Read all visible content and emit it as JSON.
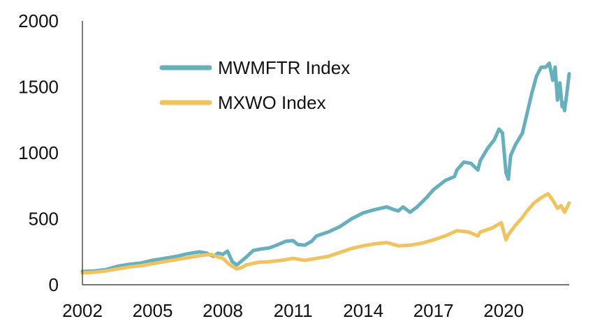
{
  "chart_data": {
    "type": "line",
    "title": "",
    "xlabel": "",
    "ylabel": "",
    "xlim": [
      2002,
      2022.8
    ],
    "ylim": [
      0,
      2000
    ],
    "grid": false,
    "legend_position": "top-left",
    "x_ticks": [
      {
        "value": 2002,
        "label": "2002"
      },
      {
        "value": 2005,
        "label": "2005"
      },
      {
        "value": 2008,
        "label": "2008"
      },
      {
        "value": 2011,
        "label": "2011"
      },
      {
        "value": 2014,
        "label": "2014"
      },
      {
        "value": 2017,
        "label": "2017"
      },
      {
        "value": 2020,
        "label": "2020"
      }
    ],
    "y_ticks": [
      {
        "value": 0,
        "label": "0"
      },
      {
        "value": 500,
        "label": "500"
      },
      {
        "value": 1000,
        "label": "1000"
      },
      {
        "value": 1500,
        "label": "1500"
      },
      {
        "value": 2000,
        "label": "2000"
      }
    ],
    "series": [
      {
        "name": "MWMFTR Index",
        "color": "#66b0bd",
        "points": [
          [
            2002.0,
            100
          ],
          [
            2002.5,
            105
          ],
          [
            2003.0,
            115
          ],
          [
            2003.5,
            140
          ],
          [
            2004.0,
            155
          ],
          [
            2004.5,
            165
          ],
          [
            2005.0,
            185
          ],
          [
            2005.5,
            200
          ],
          [
            2006.0,
            215
          ],
          [
            2006.5,
            235
          ],
          [
            2007.0,
            250
          ],
          [
            2007.3,
            240
          ],
          [
            2007.6,
            215
          ],
          [
            2007.8,
            240
          ],
          [
            2008.0,
            230
          ],
          [
            2008.2,
            255
          ],
          [
            2008.4,
            175
          ],
          [
            2008.6,
            150
          ],
          [
            2008.8,
            180
          ],
          [
            2009.0,
            210
          ],
          [
            2009.3,
            260
          ],
          [
            2009.6,
            270
          ],
          [
            2010.0,
            280
          ],
          [
            2010.3,
            300
          ],
          [
            2010.7,
            330
          ],
          [
            2011.0,
            335
          ],
          [
            2011.2,
            305
          ],
          [
            2011.5,
            300
          ],
          [
            2011.8,
            330
          ],
          [
            2012.0,
            370
          ],
          [
            2012.5,
            400
          ],
          [
            2013.0,
            440
          ],
          [
            2013.5,
            500
          ],
          [
            2014.0,
            545
          ],
          [
            2014.5,
            570
          ],
          [
            2015.0,
            590
          ],
          [
            2015.3,
            570
          ],
          [
            2015.5,
            560
          ],
          [
            2015.7,
            590
          ],
          [
            2016.0,
            550
          ],
          [
            2016.3,
            590
          ],
          [
            2016.7,
            660
          ],
          [
            2017.0,
            720
          ],
          [
            2017.5,
            790
          ],
          [
            2017.9,
            820
          ],
          [
            2018.0,
            870
          ],
          [
            2018.3,
            930
          ],
          [
            2018.6,
            920
          ],
          [
            2018.9,
            870
          ],
          [
            2019.0,
            940
          ],
          [
            2019.3,
            1030
          ],
          [
            2019.6,
            1100
          ],
          [
            2019.8,
            1180
          ],
          [
            2019.95,
            1150
          ],
          [
            2020.1,
            850
          ],
          [
            2020.2,
            800
          ],
          [
            2020.3,
            980
          ],
          [
            2020.5,
            1060
          ],
          [
            2020.8,
            1150
          ],
          [
            2021.0,
            1300
          ],
          [
            2021.2,
            1450
          ],
          [
            2021.4,
            1580
          ],
          [
            2021.6,
            1650
          ],
          [
            2021.8,
            1650
          ],
          [
            2021.95,
            1680
          ],
          [
            2022.1,
            1550
          ],
          [
            2022.2,
            1650
          ],
          [
            2022.3,
            1400
          ],
          [
            2022.4,
            1530
          ],
          [
            2022.5,
            1350
          ],
          [
            2022.55,
            1380
          ],
          [
            2022.6,
            1320
          ],
          [
            2022.7,
            1450
          ],
          [
            2022.8,
            1600
          ]
        ]
      },
      {
        "name": "MXWO Index",
        "color": "#f0c35e",
        "points": [
          [
            2002.0,
            90
          ],
          [
            2002.5,
            95
          ],
          [
            2003.0,
            105
          ],
          [
            2003.5,
            120
          ],
          [
            2004.0,
            135
          ],
          [
            2004.5,
            145
          ],
          [
            2005.0,
            160
          ],
          [
            2005.5,
            175
          ],
          [
            2006.0,
            190
          ],
          [
            2006.5,
            205
          ],
          [
            2007.0,
            220
          ],
          [
            2007.5,
            230
          ],
          [
            2007.8,
            210
          ],
          [
            2008.0,
            200
          ],
          [
            2008.3,
            150
          ],
          [
            2008.6,
            120
          ],
          [
            2008.8,
            130
          ],
          [
            2009.0,
            150
          ],
          [
            2009.5,
            170
          ],
          [
            2010.0,
            175
          ],
          [
            2010.5,
            185
          ],
          [
            2011.0,
            200
          ],
          [
            2011.5,
            185
          ],
          [
            2012.0,
            200
          ],
          [
            2012.5,
            215
          ],
          [
            2013.0,
            245
          ],
          [
            2013.5,
            275
          ],
          [
            2014.0,
            295
          ],
          [
            2014.5,
            310
          ],
          [
            2015.0,
            320
          ],
          [
            2015.5,
            295
          ],
          [
            2016.0,
            300
          ],
          [
            2016.5,
            315
          ],
          [
            2017.0,
            340
          ],
          [
            2017.5,
            370
          ],
          [
            2018.0,
            410
          ],
          [
            2018.5,
            400
          ],
          [
            2018.9,
            370
          ],
          [
            2019.0,
            400
          ],
          [
            2019.5,
            430
          ],
          [
            2019.9,
            470
          ],
          [
            2020.1,
            340
          ],
          [
            2020.2,
            380
          ],
          [
            2020.5,
            450
          ],
          [
            2020.8,
            510
          ],
          [
            2021.0,
            560
          ],
          [
            2021.3,
            620
          ],
          [
            2021.6,
            660
          ],
          [
            2021.9,
            690
          ],
          [
            2022.1,
            640
          ],
          [
            2022.3,
            580
          ],
          [
            2022.45,
            600
          ],
          [
            2022.6,
            550
          ],
          [
            2022.8,
            620
          ]
        ]
      }
    ]
  }
}
